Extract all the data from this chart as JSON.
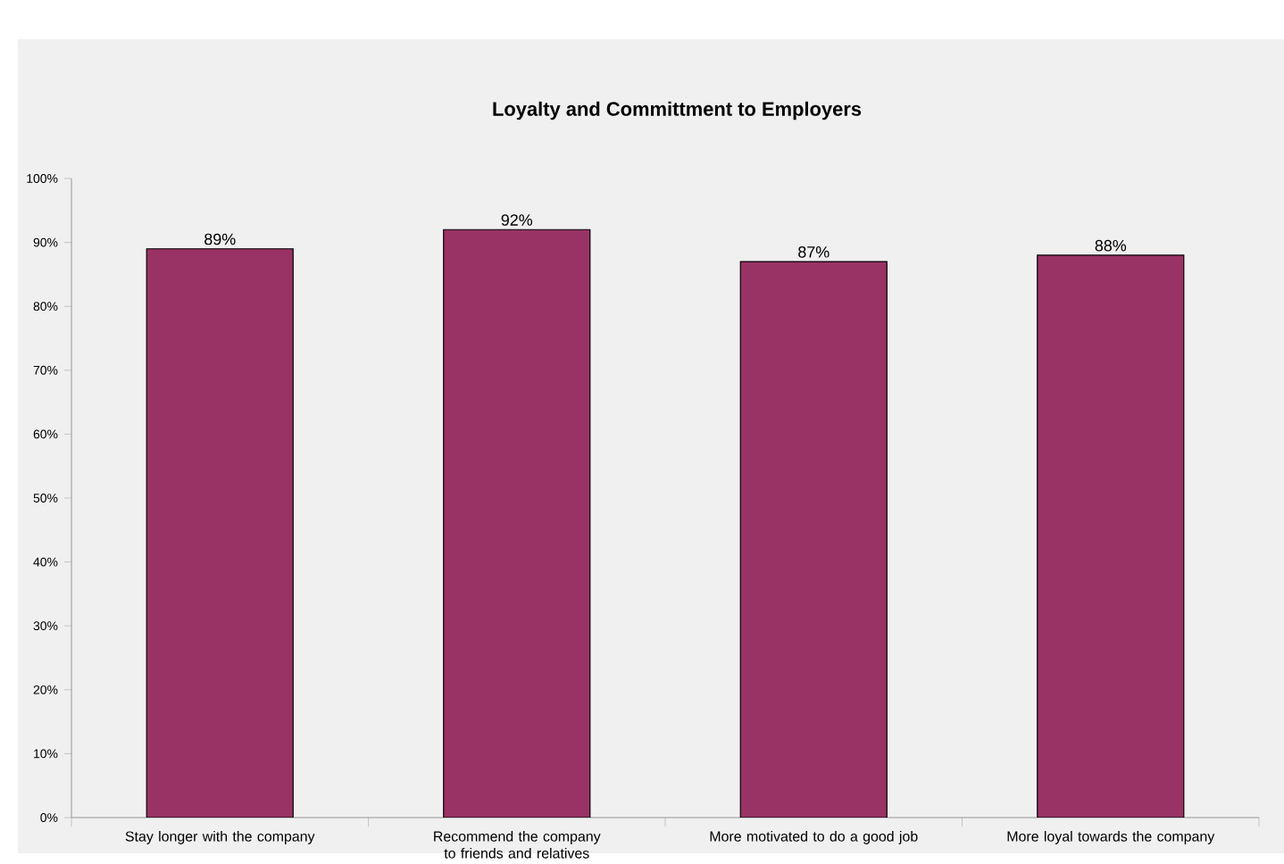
{
  "chart_data": {
    "type": "bar",
    "title": "Loyalty and Committment to Employers",
    "categories": [
      "Stay longer with the company",
      "Recommend the company to friends and relatives",
      "More motivated to do a good job",
      "More loyal towards the company"
    ],
    "values": [
      89,
      92,
      87,
      88
    ],
    "value_labels": [
      "89%",
      "92%",
      "87%",
      "88%"
    ],
    "color": "#993366",
    "ylim": [
      0,
      100
    ],
    "yticks": [
      {
        "value": 0,
        "label": "0%"
      },
      {
        "value": 10,
        "label": "10%"
      },
      {
        "value": 20,
        "label": "20%"
      },
      {
        "value": 30,
        "label": "30%"
      },
      {
        "value": 40,
        "label": "40%"
      },
      {
        "value": 50,
        "label": "50%"
      },
      {
        "value": 60,
        "label": "60%"
      },
      {
        "value": 70,
        "label": "70%"
      },
      {
        "value": 80,
        "label": "80%"
      },
      {
        "value": 90,
        "label": "90%"
      },
      {
        "value": 100,
        "label": "100%"
      }
    ],
    "grid": false
  }
}
